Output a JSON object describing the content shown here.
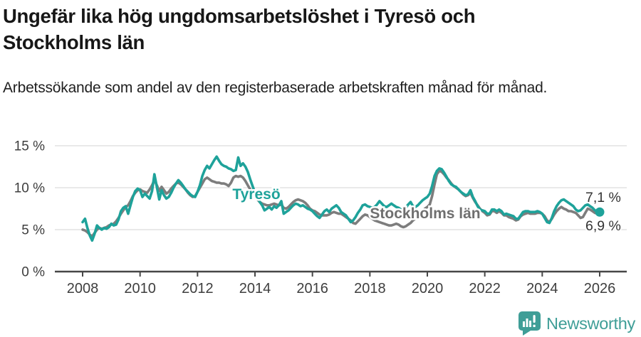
{
  "page": {
    "title": "Ungefär lika hög ungdomsarbetslöshet i Tyresö och Stockholms län",
    "subtitle": "Arbetssökande som andel av den registerbaserade arbetskraften månad för månad."
  },
  "chart_data": {
    "type": "line",
    "title": "Ungefär lika hög ungdomsarbetslöshet i Tyresö och Stockholms län",
    "subtitle": "Arbetssökande som andel av den registerbaserade arbetskraften månad för månad.",
    "x_unit": "month",
    "x_start": "2008-01",
    "x_end": "2026-01",
    "x_tick_years": [
      2008,
      2010,
      2012,
      2014,
      2016,
      2018,
      2020,
      2022,
      2024,
      2026
    ],
    "y_ticks": [
      {
        "value": 15,
        "label": "15 %"
      },
      {
        "value": 10,
        "label": "10 %"
      },
      {
        "value": 5,
        "label": "5 %"
      },
      {
        "value": 0,
        "label": "0 %"
      }
    ],
    "ylim": [
      0,
      16.3
    ],
    "grid": "horizontal",
    "legend": "inline-labels",
    "series": [
      {
        "name": "Stockholms län",
        "color": "#7d7d7d",
        "label_color": "#6f6f6f",
        "end_label": "6,9 %",
        "end_value": 6.9,
        "values": [
          5.0,
          4.9,
          4.7,
          4.4,
          4.2,
          4.6,
          5.0,
          5.2,
          5.1,
          5.2,
          5.3,
          5.5,
          5.6,
          5.7,
          6.0,
          6.4,
          6.9,
          7.3,
          7.7,
          7.9,
          8.4,
          9.0,
          9.4,
          9.7,
          9.8,
          9.6,
          9.5,
          9.4,
          9.8,
          10.3,
          10.9,
          10.3,
          9.6,
          10.1,
          9.7,
          9.3,
          9.5,
          9.9,
          10.2,
          10.5,
          10.6,
          10.4,
          10.1,
          9.8,
          9.4,
          9.1,
          8.9,
          9.0,
          9.5,
          10.0,
          10.5,
          11.0,
          11.2,
          11.0,
          10.8,
          10.7,
          10.6,
          10.6,
          10.5,
          10.5,
          10.4,
          10.2,
          10.6,
          11.2,
          11.4,
          11.3,
          11.4,
          11.2,
          10.8,
          10.3,
          9.8,
          9.5,
          9.0,
          8.6,
          8.3,
          8.1,
          8.0,
          7.9,
          7.9,
          8.0,
          8.1,
          8.0,
          7.9,
          8.0,
          7.6,
          7.5,
          7.7,
          8.0,
          8.3,
          8.5,
          8.6,
          8.5,
          8.4,
          8.2,
          7.9,
          7.5,
          7.3,
          7.2,
          7.0,
          6.8,
          6.7,
          6.7,
          6.7,
          6.8,
          7.0,
          7.1,
          7.0,
          6.9,
          6.9,
          6.7,
          6.5,
          6.3,
          6.1,
          5.8,
          5.7,
          6.0,
          6.3,
          6.6,
          6.8,
          6.7,
          6.5,
          6.3,
          6.1,
          6.0,
          5.9,
          5.8,
          5.7,
          5.6,
          5.5,
          5.5,
          5.6,
          5.7,
          5.6,
          5.4,
          5.3,
          5.4,
          5.6,
          5.8,
          6.1,
          6.3,
          6.6,
          6.9,
          7.2,
          7.5,
          7.7,
          8.0,
          9.0,
          10.4,
          11.6,
          12.0,
          11.9,
          11.6,
          11.2,
          10.9,
          10.5,
          10.2,
          10.0,
          9.8,
          9.5,
          9.2,
          9.0,
          9.1,
          9.4,
          8.8,
          8.3,
          7.9,
          7.5,
          7.2,
          7.0,
          6.7,
          6.8,
          7.2,
          7.2,
          7.0,
          7.2,
          7.0,
          6.7,
          6.7,
          6.5,
          6.4,
          6.3,
          6.1,
          6.2,
          6.6,
          6.8,
          6.9,
          7.0,
          6.9,
          6.9,
          6.9,
          7.0,
          7.0,
          6.9,
          6.6,
          6.1,
          5.9,
          6.3,
          6.8,
          7.2,
          7.5,
          7.7,
          7.5,
          7.4,
          7.2,
          7.2,
          7.1,
          7.0,
          6.7,
          6.4,
          6.5,
          7.0,
          7.5,
          7.4,
          7.2,
          7.0,
          6.9,
          6.9
        ]
      },
      {
        "name": "Tyresö",
        "color": "#1ea29a",
        "label_color": "#1ea29a",
        "end_label": "7,1 %",
        "end_value": 7.1,
        "marker_on_last_point": true,
        "values": [
          5.9,
          6.3,
          5.2,
          4.3,
          3.7,
          4.5,
          5.5,
          5.2,
          5.0,
          5.2,
          5.1,
          5.3,
          5.7,
          5.5,
          5.6,
          6.2,
          7.2,
          7.6,
          7.8,
          6.9,
          7.9,
          8.9,
          9.6,
          9.9,
          9.7,
          8.9,
          9.3,
          9.0,
          8.7,
          9.6,
          11.6,
          10.1,
          8.6,
          9.7,
          9.1,
          8.7,
          8.9,
          9.4,
          10.0,
          10.5,
          10.9,
          10.6,
          10.2,
          9.8,
          9.5,
          9.2,
          9.0,
          8.9,
          9.5,
          10.3,
          11.4,
          12.1,
          12.6,
          12.3,
          12.8,
          13.3,
          13.7,
          13.2,
          12.8,
          12.6,
          12.5,
          12.3,
          12.2,
          12.0,
          12.1,
          13.6,
          12.6,
          12.9,
          12.5,
          11.9,
          11.0,
          10.2,
          9.4,
          8.8,
          8.3,
          7.9,
          7.3,
          7.5,
          7.7,
          7.4,
          7.8,
          7.6,
          7.9,
          8.4,
          6.9,
          7.1,
          7.3,
          7.6,
          7.9,
          8.1,
          8.0,
          7.8,
          7.9,
          7.7,
          7.5,
          7.4,
          7.2,
          6.9,
          6.6,
          6.4,
          6.8,
          7.2,
          7.4,
          7.1,
          7.5,
          7.7,
          7.9,
          7.6,
          7.1,
          6.9,
          6.7,
          6.3,
          5.9,
          6.1,
          6.5,
          7.0,
          7.4,
          7.9,
          8.0,
          7.8,
          7.7,
          7.6,
          7.7,
          8.0,
          8.4,
          8.1,
          7.8,
          7.7,
          7.9,
          8.1,
          7.9,
          7.7,
          7.6,
          7.4,
          7.3,
          7.6,
          8.0,
          8.3,
          7.8,
          7.7,
          7.9,
          8.2,
          8.5,
          8.7,
          8.9,
          9.3,
          10.2,
          11.4,
          12.0,
          12.3,
          12.2,
          11.8,
          11.3,
          10.8,
          10.4,
          10.2,
          10.1,
          9.8,
          9.5,
          9.3,
          9.1,
          9.2,
          9.7,
          8.9,
          8.4,
          7.8,
          7.4,
          7.3,
          7.2,
          6.9,
          6.9,
          7.4,
          7.4,
          7.2,
          7.4,
          7.2,
          6.8,
          6.9,
          6.8,
          6.7,
          6.6,
          6.3,
          6.3,
          6.7,
          7.1,
          7.2,
          7.2,
          7.1,
          7.1,
          7.1,
          7.2,
          7.1,
          6.9,
          6.4,
          5.9,
          5.8,
          6.4,
          7.2,
          7.8,
          8.2,
          8.5,
          8.6,
          8.4,
          8.2,
          8.0,
          7.8,
          7.4,
          7.2,
          7.3,
          7.6,
          7.9,
          8.0,
          7.8,
          7.6,
          7.3,
          7.2,
          7.1
        ]
      }
    ]
  },
  "branding": {
    "name": "Newsworthy",
    "color": "#3f9e97"
  },
  "colors": {
    "grid": "#dcdcdc",
    "axis": "#474747",
    "axis_text": "#3e3e3e",
    "value_label_text": "#333333"
  }
}
